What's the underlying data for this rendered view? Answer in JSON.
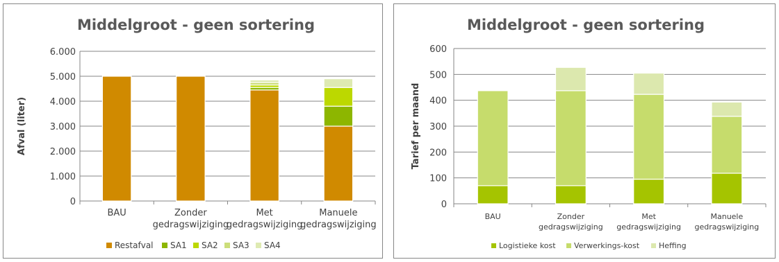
{
  "chart_data": [
    {
      "type": "bar",
      "stacked": true,
      "title": "Middelgroot - geen sortering",
      "ylabel": "Afval (liter)",
      "ylim": [
        0,
        6000
      ],
      "yticks": [
        "0",
        "1.000",
        "2.000",
        "3.000",
        "4.000",
        "5.000",
        "6.000"
      ],
      "grid": true,
      "legend_position": "bottom",
      "categories": [
        [
          "BAU"
        ],
        [
          "Zonder",
          "gedragswijziging"
        ],
        [
          "Met",
          "gedragswijziging"
        ],
        [
          "Manuele",
          "gedragswijziging"
        ]
      ],
      "series": [
        {
          "name": "Restafval",
          "color": "#D08A00",
          "values": [
            5000,
            5000,
            4450,
            3000
          ]
        },
        {
          "name": "SA1",
          "color": "#8DB600",
          "values": [
            0,
            0,
            100,
            800
          ]
        },
        {
          "name": "SA2",
          "color": "#BCD800",
          "values": [
            0,
            0,
            100,
            750
          ]
        },
        {
          "name": "SA3",
          "color": "#CCDE7A",
          "values": [
            0,
            0,
            100,
            0
          ]
        },
        {
          "name": "SA4",
          "color": "#DEEAB2",
          "values": [
            0,
            0,
            100,
            350
          ]
        }
      ]
    },
    {
      "type": "bar",
      "stacked": true,
      "title": "Middelgroot - geen sortering",
      "ylabel": "Tarief per maand",
      "ylim": [
        0,
        600
      ],
      "yticks": [
        "0",
        "100",
        "200",
        "300",
        "400",
        "500",
        "600"
      ],
      "grid": true,
      "legend_position": "bottom",
      "categories": [
        [
          "BAU"
        ],
        [
          "Zonder",
          "gedragswijziging"
        ],
        [
          "Met",
          "gedragswijziging"
        ],
        [
          "Manuele",
          "gedragswijziging"
        ]
      ],
      "series": [
        {
          "name": "Logistieke kost",
          "color": "#A5C400",
          "values": [
            70,
            70,
            95,
            118
          ]
        },
        {
          "name": "Verwerkings-kost",
          "color": "#C6DC6C",
          "values": [
            367,
            367,
            328,
            220
          ]
        },
        {
          "name": "Heffing",
          "color": "#DCE8AE",
          "values": [
            0,
            90,
            82,
            55
          ]
        }
      ]
    }
  ]
}
